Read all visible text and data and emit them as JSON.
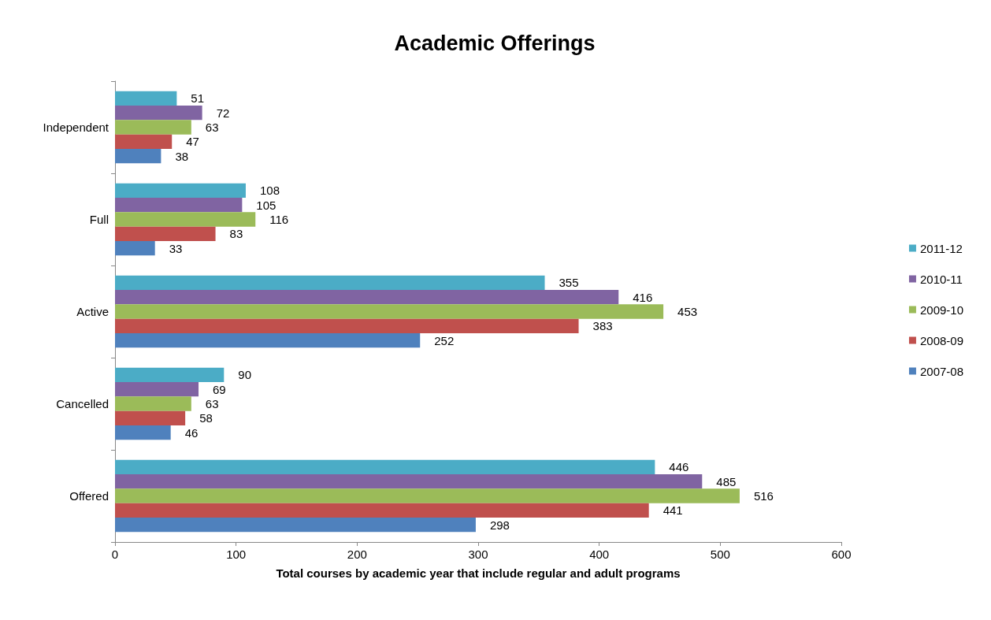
{
  "chart_data": {
    "type": "bar",
    "orientation": "horizontal",
    "title": "Academic Offerings",
    "xlabel": "Total courses by academic year that include regular and adult programs",
    "categories": [
      "Independent",
      "Full",
      "Active",
      "Cancelled",
      "Offered"
    ],
    "series": [
      {
        "name": "2011-12",
        "color": "#4bacc6",
        "values": [
          51,
          108,
          355,
          90,
          446
        ]
      },
      {
        "name": "2010-11",
        "color": "#8064a2",
        "values": [
          72,
          105,
          416,
          69,
          485
        ]
      },
      {
        "name": "2009-10",
        "color": "#9bbb59",
        "values": [
          63,
          116,
          453,
          63,
          516
        ]
      },
      {
        "name": "2008-09",
        "color": "#c0504d",
        "values": [
          47,
          83,
          383,
          58,
          441
        ]
      },
      {
        "name": "2007-08",
        "color": "#4f81bd",
        "values": [
          38,
          33,
          252,
          46,
          298
        ]
      }
    ],
    "xlim": [
      0,
      600
    ],
    "xticks": [
      0,
      100,
      200,
      300,
      400,
      500,
      600
    ],
    "data_labels": true,
    "grid": false,
    "legend": "right"
  }
}
